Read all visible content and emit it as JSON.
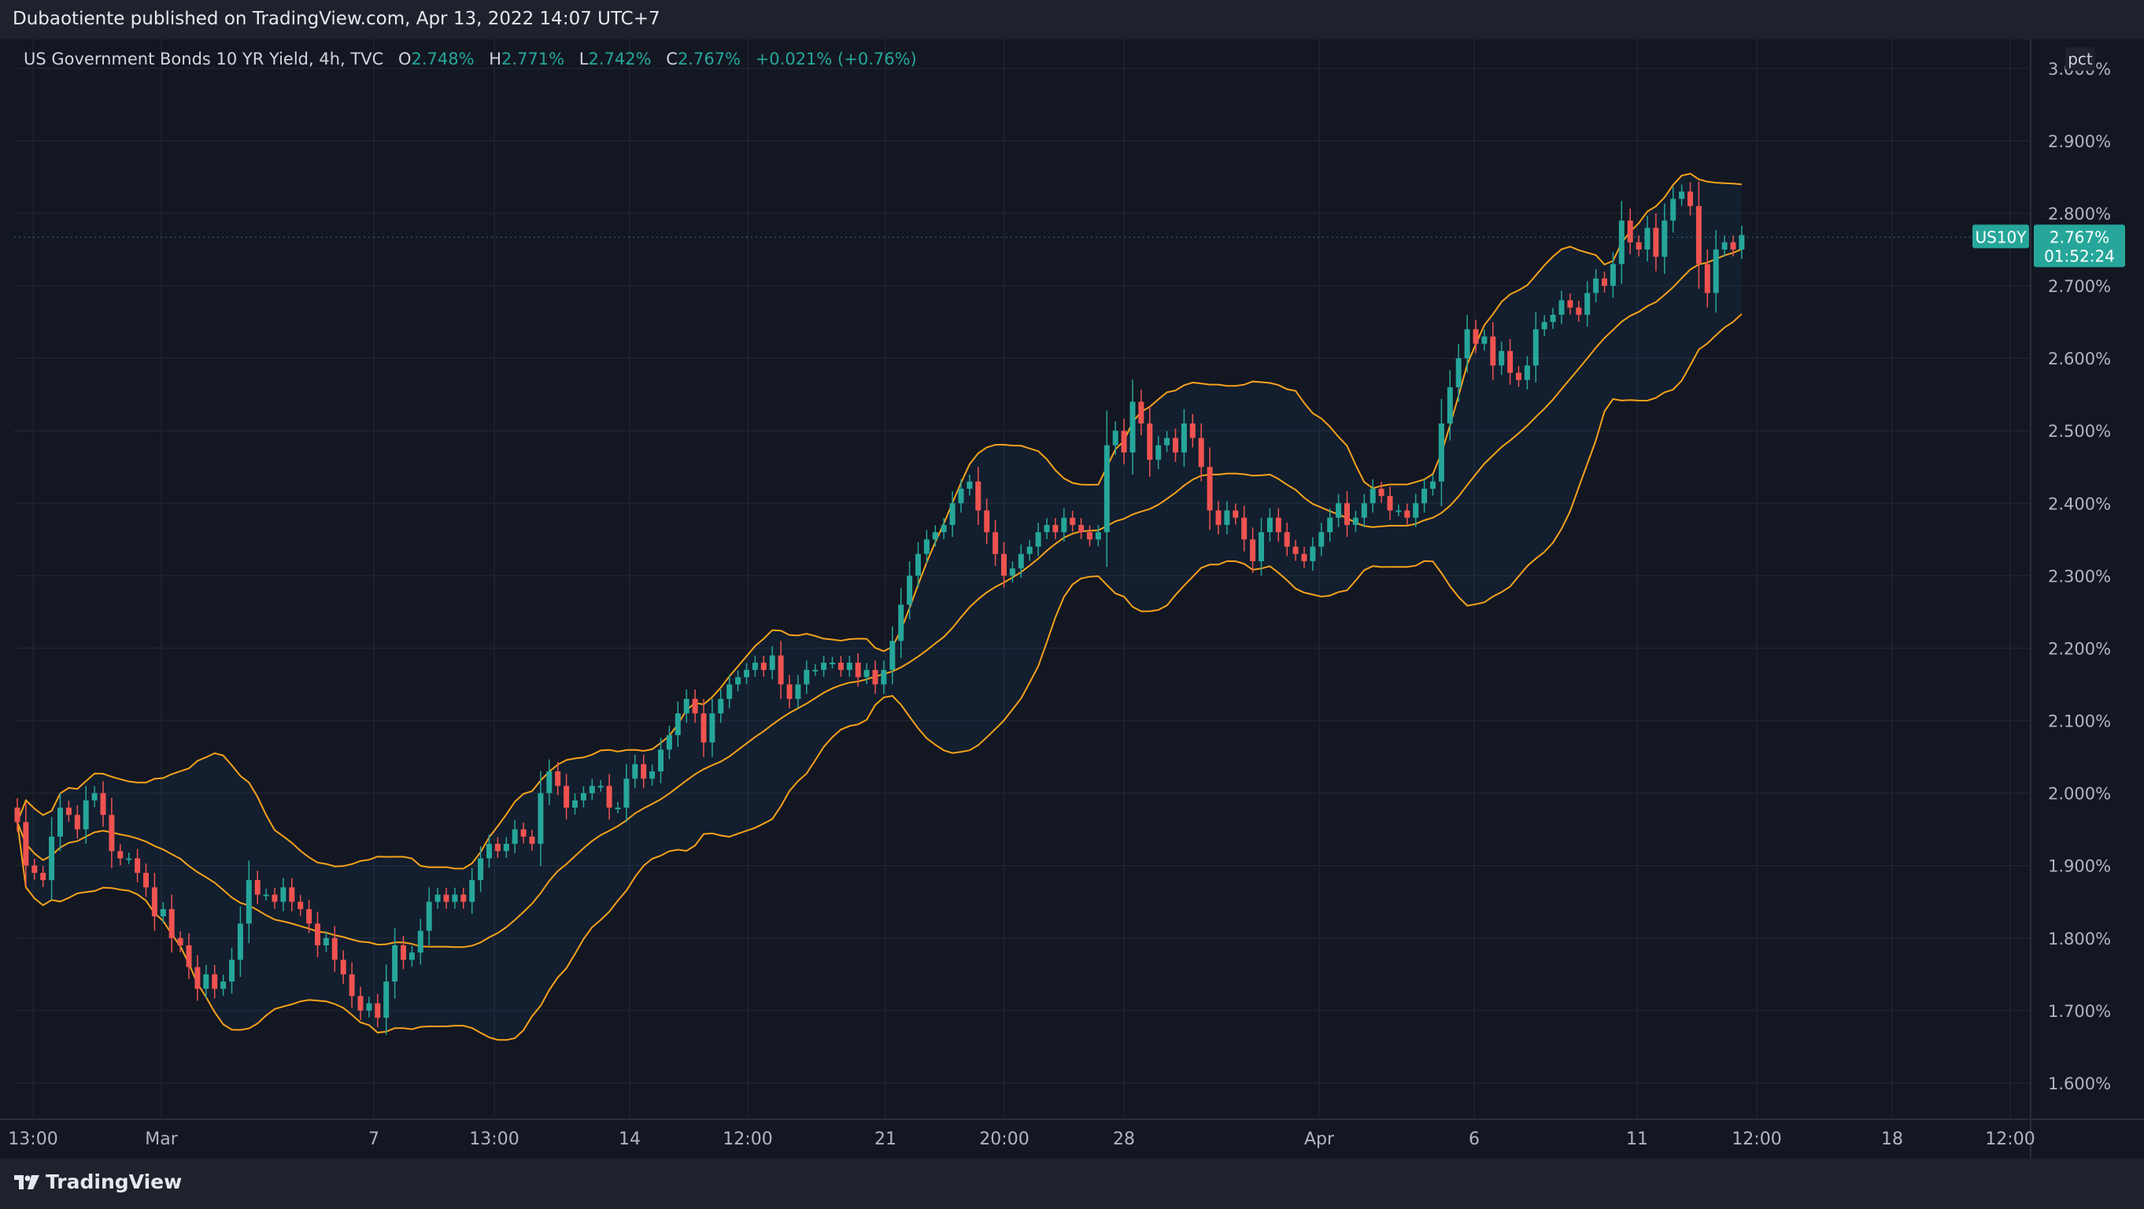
{
  "header": {
    "published": "Dubaotiente published on TradingView.com, Apr 13, 2022 14:07 UTC+7"
  },
  "legend": {
    "title": "US Government Bonds 10 YR Yield, 4h, TVC",
    "open_label": "O",
    "open": "2.748%",
    "high_label": "H",
    "high": "2.771%",
    "low_label": "L",
    "low": "2.742%",
    "close_label": "C",
    "close": "2.767%",
    "change": "+0.021% (+0.76%)"
  },
  "toolbar": {
    "scale_button": "pct"
  },
  "footer": {
    "brand": "TradingView"
  },
  "colors": {
    "up": "#26a69a",
    "down": "#ef5350",
    "band": "#f7a21b",
    "background": "#131722"
  },
  "chart_data": {
    "type": "candlestick",
    "symbol": "US10Y",
    "last_price_label": "2.767%",
    "countdown": "01:52:24",
    "indicator": "Bollinger Bands",
    "ylim": [
      1.55,
      3.04
    ],
    "y_ticks": [
      "1.600%",
      "1.700%",
      "1.800%",
      "1.900%",
      "2.000%",
      "2.100%",
      "2.200%",
      "2.300%",
      "2.400%",
      "2.500%",
      "2.600%",
      "2.700%",
      "2.800%",
      "2.900%",
      "3.000%"
    ],
    "x_ticks": [
      "13:00",
      "Mar",
      "7",
      "13:00",
      "14",
      "12:00",
      "21",
      "20:00",
      "28",
      "Apr",
      "6",
      "11",
      "12:00",
      "18",
      "12:00"
    ],
    "close": [
      1.96,
      1.9,
      1.89,
      1.88,
      1.94,
      1.98,
      1.97,
      1.95,
      1.99,
      2.0,
      1.97,
      1.92,
      1.91,
      1.91,
      1.89,
      1.87,
      1.83,
      1.84,
      1.8,
      1.79,
      1.76,
      1.73,
      1.75,
      1.73,
      1.74,
      1.77,
      1.82,
      1.88,
      1.86,
      1.86,
      1.85,
      1.87,
      1.85,
      1.84,
      1.82,
      1.79,
      1.8,
      1.77,
      1.75,
      1.72,
      1.7,
      1.71,
      1.69,
      1.74,
      1.79,
      1.77,
      1.78,
      1.81,
      1.85,
      1.86,
      1.85,
      1.86,
      1.85,
      1.88,
      1.91,
      1.93,
      1.92,
      1.93,
      1.95,
      1.94,
      1.93,
      2.0,
      2.03,
      2.01,
      1.98,
      1.99,
      2.0,
      2.01,
      2.01,
      1.98,
      1.98,
      2.02,
      2.04,
      2.02,
      2.03,
      2.06,
      2.08,
      2.11,
      2.13,
      2.11,
      2.07,
      2.11,
      2.13,
      2.15,
      2.16,
      2.17,
      2.18,
      2.17,
      2.19,
      2.15,
      2.13,
      2.15,
      2.17,
      2.17,
      2.18,
      2.18,
      2.17,
      2.18,
      2.16,
      2.17,
      2.15,
      2.17,
      2.21,
      2.26,
      2.3,
      2.33,
      2.35,
      2.36,
      2.37,
      2.4,
      2.42,
      2.43,
      2.39,
      2.36,
      2.33,
      2.3,
      2.31,
      2.33,
      2.34,
      2.36,
      2.37,
      2.36,
      2.38,
      2.37,
      2.36,
      2.35,
      2.36,
      2.48,
      2.5,
      2.47,
      2.54,
      2.51,
      2.46,
      2.48,
      2.49,
      2.47,
      2.51,
      2.49,
      2.45,
      2.39,
      2.37,
      2.39,
      2.38,
      2.35,
      2.32,
      2.36,
      2.38,
      2.36,
      2.34,
      2.33,
      2.32,
      2.34,
      2.36,
      2.38,
      2.4,
      2.37,
      2.38,
      2.4,
      2.42,
      2.41,
      2.39,
      2.39,
      2.38,
      2.4,
      2.42,
      2.43,
      2.51,
      2.56,
      2.6,
      2.64,
      2.62,
      2.63,
      2.59,
      2.61,
      2.58,
      2.57,
      2.59,
      2.64,
      2.65,
      2.66,
      2.68,
      2.67,
      2.66,
      2.69,
      2.71,
      2.7,
      2.73,
      2.79,
      2.76,
      2.75,
      2.78,
      2.74,
      2.79,
      2.82,
      2.83,
      2.81,
      2.73,
      2.69,
      2.75,
      2.76,
      2.75,
      2.77
    ]
  }
}
